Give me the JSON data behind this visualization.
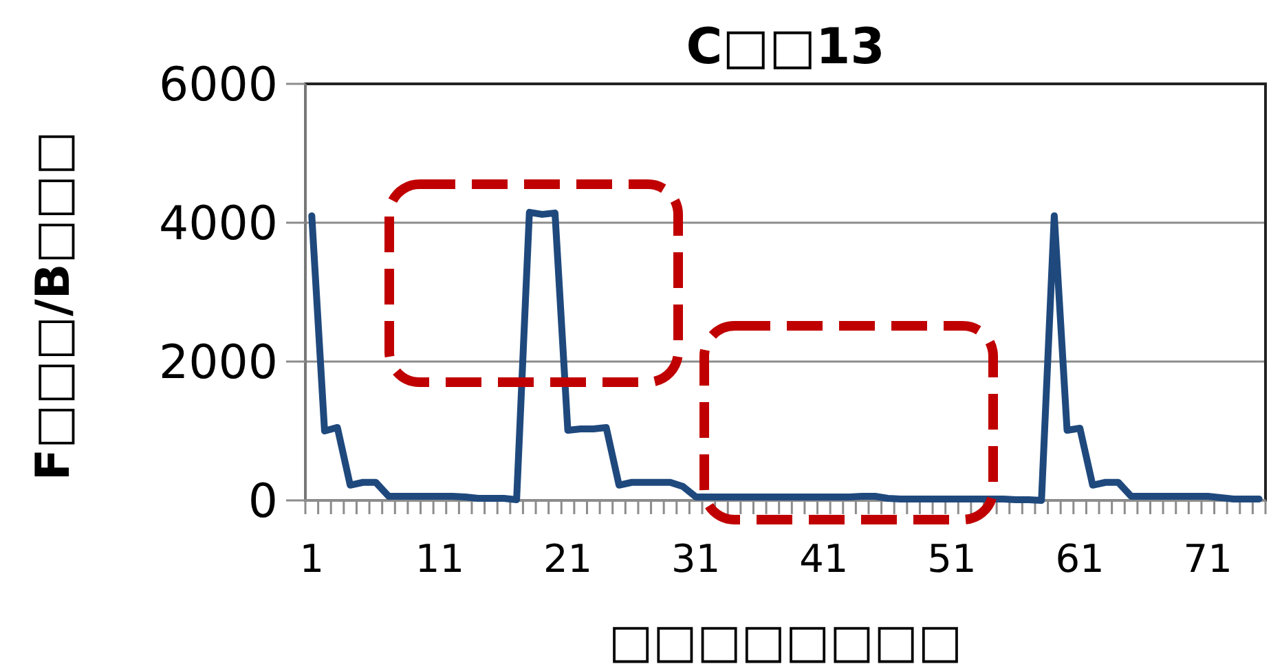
{
  "chart_data": {
    "type": "line",
    "title": "C□□13",
    "xlabel": "□□□□□□□□",
    "ylabel": "F□□□/B□□□",
    "categories": [
      "1",
      null,
      null,
      null,
      null,
      null,
      null,
      null,
      null,
      null,
      "11",
      null,
      null,
      null,
      null,
      null,
      null,
      null,
      null,
      null,
      "21",
      null,
      null,
      null,
      null,
      null,
      null,
      null,
      null,
      null,
      "31",
      null,
      null,
      null,
      null,
      null,
      null,
      null,
      null,
      null,
      "41",
      null,
      null,
      null,
      null,
      null,
      null,
      null,
      null,
      null,
      "51",
      null,
      null,
      null,
      null,
      null,
      null,
      null,
      null,
      null,
      "61",
      null,
      null,
      null,
      null,
      null,
      null,
      null,
      null,
      null,
      "71",
      null,
      null,
      null,
      null
    ],
    "series": [
      {
        "color": "#1f497d",
        "values": [
          4100,
          1000,
          1050,
          220,
          260,
          260,
          60,
          60,
          60,
          60,
          60,
          60,
          50,
          30,
          30,
          30,
          10,
          4150,
          4120,
          4140,
          1010,
          1030,
          1030,
          1050,
          220,
          260,
          260,
          260,
          260,
          200,
          50,
          50,
          50,
          50,
          50,
          50,
          50,
          50,
          50,
          50,
          50,
          50,
          50,
          60,
          60,
          30,
          20,
          20,
          20,
          20,
          20,
          20,
          20,
          20,
          20,
          10,
          10,
          0,
          4100,
          1010,
          1040,
          220,
          260,
          260,
          60,
          60,
          60,
          60,
          60,
          60,
          60,
          40,
          20,
          20,
          20
        ]
      }
    ],
    "ylim": [
      0,
      6000
    ],
    "yticks": [
      0,
      2000,
      4000,
      6000
    ],
    "grid": "y",
    "marker": "none",
    "line_style": "solid"
  }
}
